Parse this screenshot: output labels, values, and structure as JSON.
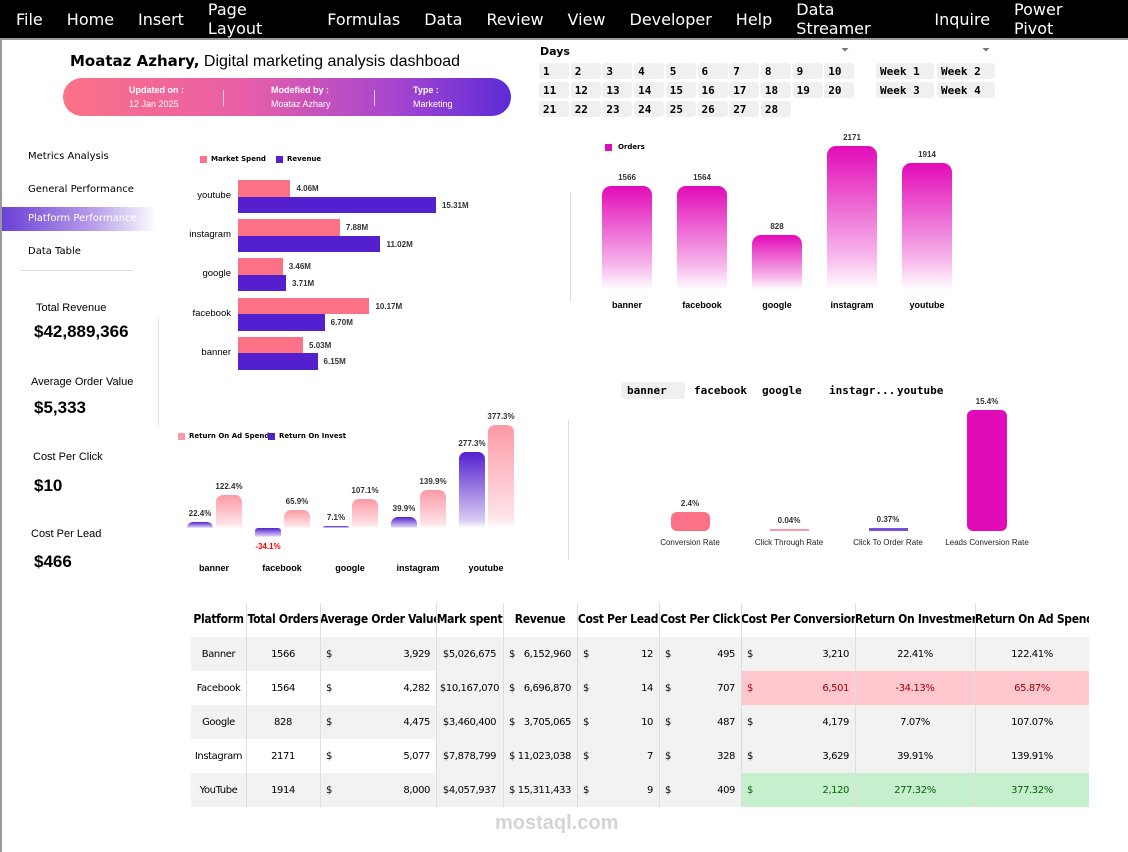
{
  "menu": [
    "File",
    "Home",
    "Insert",
    "Page Layout",
    "Formulas",
    "Data",
    "Review",
    "View",
    "Developer",
    "Help",
    "Data Streamer",
    "Inquire",
    "Power Pivot"
  ],
  "header": {
    "name": "Moataz Azhary,",
    "subtitle": "Digital marketing analysis dashboad",
    "updated_label": "Updated on :",
    "updated_value": "12 Jan 2025",
    "modified_label": "Modefied by :",
    "modified_value": "Moataz Azhary",
    "type_label": "Type  :",
    "type_value": "Marketing"
  },
  "days_slicer": {
    "title": "Days",
    "items": [
      "1",
      "2",
      "3",
      "4",
      "5",
      "6",
      "7",
      "8",
      "9",
      "10",
      "11",
      "12",
      "13",
      "14",
      "15",
      "16",
      "17",
      "18",
      "19",
      "20",
      "21",
      "22",
      "23",
      "24",
      "25",
      "26",
      "27",
      "28"
    ]
  },
  "weeks_slicer": {
    "items": [
      "Week 1",
      "Week 2",
      "Week 3",
      "Week 4"
    ]
  },
  "platform_slicer": {
    "items": [
      "banner",
      "facebook",
      "google",
      "instagr...",
      "youtube"
    ],
    "selected": "banner"
  },
  "nav": {
    "items": [
      "Metrics Analysis",
      "General Performance",
      "Platform Performance",
      "Data Table"
    ],
    "active": "Platform Performance"
  },
  "kpis": [
    {
      "label": "Total Revenue",
      "value": "$42,889,366"
    },
    {
      "label": "Average Order Value",
      "value": "$5,333"
    },
    {
      "label": "Cost Per Click",
      "value": "$10"
    },
    {
      "label": "Cost Per Lead",
      "value": "$466"
    }
  ],
  "colors": {
    "pink": "#fb7185",
    "purple": "#5420cf",
    "magenta": "#e20bb8",
    "accent_gradient_start": "#fb7185",
    "accent_gradient_end": "#5b2bd6"
  },
  "chart_data": [
    {
      "type": "bar",
      "orientation": "horizontal",
      "categories": [
        "youtube",
        "instagram",
        "google",
        "facebook",
        "banner"
      ],
      "series": [
        {
          "name": "Market Spend",
          "values": [
            4.06,
            7.88,
            3.46,
            10.17,
            5.03
          ],
          "labels": [
            "4.06M",
            "7.88M",
            "3.46M",
            "10.17M",
            "5.03M"
          ],
          "color": "#fb7185"
        },
        {
          "name": "Revenue",
          "values": [
            15.31,
            11.02,
            3.71,
            6.7,
            6.15
          ],
          "labels": [
            "15.31M",
            "11.02M",
            "3.71M",
            "6.70M",
            "6.15M"
          ],
          "color": "#5420cf"
        }
      ],
      "legend": "top-left"
    },
    {
      "type": "bar",
      "categories": [
        "banner",
        "facebook",
        "google",
        "instagram",
        "youtube"
      ],
      "series": [
        {
          "name": "Orders",
          "values": [
            1566,
            1564,
            828,
            2171,
            1914
          ],
          "color": "#e20bb8"
        }
      ],
      "legend": "top-left"
    },
    {
      "type": "bar",
      "categories": [
        "banner",
        "facebook",
        "google",
        "instagram",
        "youtube"
      ],
      "series": [
        {
          "name": "Return On Invest",
          "values": [
            22.4,
            -34.1,
            7.1,
            39.9,
            277.3
          ],
          "labels": [
            "22.4%",
            "-34.1%",
            "7.1%",
            "39.9%",
            "277.3%"
          ],
          "color": "#5420cf"
        },
        {
          "name": "Return On Ad Spend",
          "values": [
            122.4,
            65.9,
            107.1,
            139.9,
            377.3
          ],
          "labels": [
            "122.4%",
            "65.9%",
            "107.1%",
            "139.9%",
            "377.3%"
          ],
          "color": "#fb9aa6"
        }
      ],
      "legend": "top-left",
      "legend_order": [
        "Return On Ad Spend",
        "Return On Invest"
      ]
    },
    {
      "type": "bar",
      "categories": [
        "Conversion Rate",
        "Click Through Rate",
        "Click To Order Rate",
        "Leads Conversion Rate"
      ],
      "values": [
        2.4,
        0.04,
        0.37,
        15.4
      ],
      "labels": [
        "2.4%",
        "0.04%",
        "0.37%",
        "15.4%"
      ],
      "colors": [
        "#fb7185",
        "#fb9aa6",
        "#7a4fd8",
        "#e20bb8"
      ]
    }
  ],
  "table": {
    "currency": "$",
    "headers": [
      "Platform",
      "Total Orders",
      "Average Order Value",
      "Mark spent",
      "Revenue",
      "Cost Per Lead",
      "Cost Per Click",
      "Cost Per Conversion",
      "Return On Investment",
      "Return On Ad Spend"
    ],
    "rows": [
      {
        "platform": "Banner",
        "orders": "1566",
        "aov": "3,929",
        "spent": "$5,026,675",
        "revenue": "6,152,960",
        "cpl": "12",
        "cpc": "495",
        "cpconv": "3,210",
        "roi": "22.41%",
        "roas": "122.41%",
        "highlight": "none"
      },
      {
        "platform": "Facebook",
        "orders": "1564",
        "aov": "4,282",
        "spent": "$10,167,070",
        "revenue": "6,696,870",
        "cpl": "14",
        "cpc": "707",
        "cpconv": "6,501",
        "roi": "-34.13%",
        "roas": "65.87%",
        "highlight": "bad"
      },
      {
        "platform": "Google",
        "orders": "828",
        "aov": "4,475",
        "spent": "$3,460,400",
        "revenue": "3,705,065",
        "cpl": "10",
        "cpc": "487",
        "cpconv": "4,179",
        "roi": "7.07%",
        "roas": "107.07%",
        "highlight": "none"
      },
      {
        "platform": "Instagram",
        "orders": "2171",
        "aov": "5,077",
        "spent": "$7,878,799",
        "revenue": "11,023,038",
        "cpl": "7",
        "cpc": "328",
        "cpconv": "3,629",
        "roi": "39.91%",
        "roas": "139.91%",
        "highlight": "none"
      },
      {
        "platform": "YouTube",
        "orders": "1914",
        "aov": "8,000",
        "spent": "$4,057,937",
        "revenue": "15,311,433",
        "cpl": "9",
        "cpc": "409",
        "cpconv": "2,120",
        "roi": "277.32%",
        "roas": "377.32%",
        "highlight": "good"
      }
    ]
  },
  "watermark": "mostaql.com"
}
